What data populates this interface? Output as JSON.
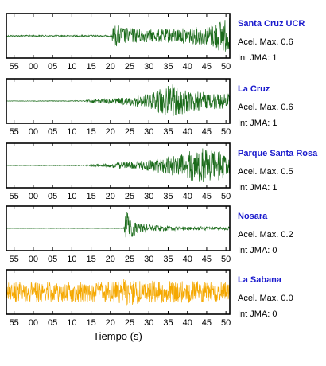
{
  "chart_data": {
    "type": "line",
    "xlabel": "Tiempo (s)",
    "x_ticks": [
      "55",
      "00",
      "05",
      "10",
      "15",
      "20",
      "25",
      "30",
      "35",
      "40",
      "45",
      "50"
    ],
    "xlim": [
      -7,
      51
    ],
    "grid": false,
    "series": [
      {
        "name": "Santa Cruz UCR",
        "accel_label": "Acel. Max. 0.6",
        "jma_label": "Int JMA: 1",
        "line_color": "#1b6b1b",
        "name_color": "#1a1acd",
        "onset_s": 20.5,
        "pre_event_noise": 0.03,
        "envelope": [
          [
            -7,
            0.03
          ],
          [
            20,
            0.04
          ],
          [
            21,
            0.55
          ],
          [
            24,
            0.4
          ],
          [
            30,
            0.3
          ],
          [
            40,
            0.38
          ],
          [
            46,
            0.5
          ],
          [
            48,
            0.75
          ],
          [
            51,
            0.85
          ]
        ]
      },
      {
        "name": "La Cruz",
        "accel_label": "Acel. Max. 0.6",
        "jma_label": "Int JMA: 1",
        "line_color": "#1b6b1b",
        "name_color": "#1a1acd",
        "onset_s": 13.5,
        "pre_event_noise": 0.01,
        "envelope": [
          [
            -7,
            0.01
          ],
          [
            13,
            0.02
          ],
          [
            15,
            0.08
          ],
          [
            22,
            0.15
          ],
          [
            30,
            0.35
          ],
          [
            34,
            0.7
          ],
          [
            36,
            0.85
          ],
          [
            40,
            0.55
          ],
          [
            45,
            0.45
          ],
          [
            51,
            0.35
          ]
        ]
      },
      {
        "name": "Parque Santa Rosa",
        "accel_label": "Acel. Max. 0.5",
        "jma_label": "Int JMA: 1",
        "line_color": "#1b6b1b",
        "name_color": "#1a1acd",
        "onset_s": 13.0,
        "pre_event_noise": 0.01,
        "envelope": [
          [
            -7,
            0.01
          ],
          [
            12,
            0.02
          ],
          [
            16,
            0.06
          ],
          [
            22,
            0.15
          ],
          [
            30,
            0.25
          ],
          [
            38,
            0.55
          ],
          [
            43,
            0.85
          ],
          [
            46,
            0.9
          ],
          [
            51,
            0.5
          ]
        ]
      },
      {
        "name": "Nosara",
        "accel_label": "Acel. Max. 0.2",
        "jma_label": "Int JMA: 0",
        "line_color": "#1b6b1b",
        "name_color": "#1a1acd",
        "onset_s": 23.5,
        "pre_event_noise": 0.008,
        "envelope": [
          [
            -7,
            0.008
          ],
          [
            23.5,
            0.01
          ],
          [
            24,
            0.95
          ],
          [
            25,
            0.5
          ],
          [
            27,
            0.28
          ],
          [
            32,
            0.14
          ],
          [
            40,
            0.1
          ],
          [
            51,
            0.08
          ]
        ]
      },
      {
        "name": "La Sabana",
        "accel_label": "Acel. Max. 0.0",
        "jma_label": "Int JMA: 0",
        "line_color": "#f5a800",
        "name_color": "#1a1acd",
        "onset_s": null,
        "pre_event_noise": 0.5,
        "envelope": [
          [
            -7,
            0.5
          ],
          [
            20,
            0.5
          ],
          [
            24,
            0.65
          ],
          [
            30,
            0.55
          ],
          [
            51,
            0.5
          ]
        ]
      }
    ]
  }
}
